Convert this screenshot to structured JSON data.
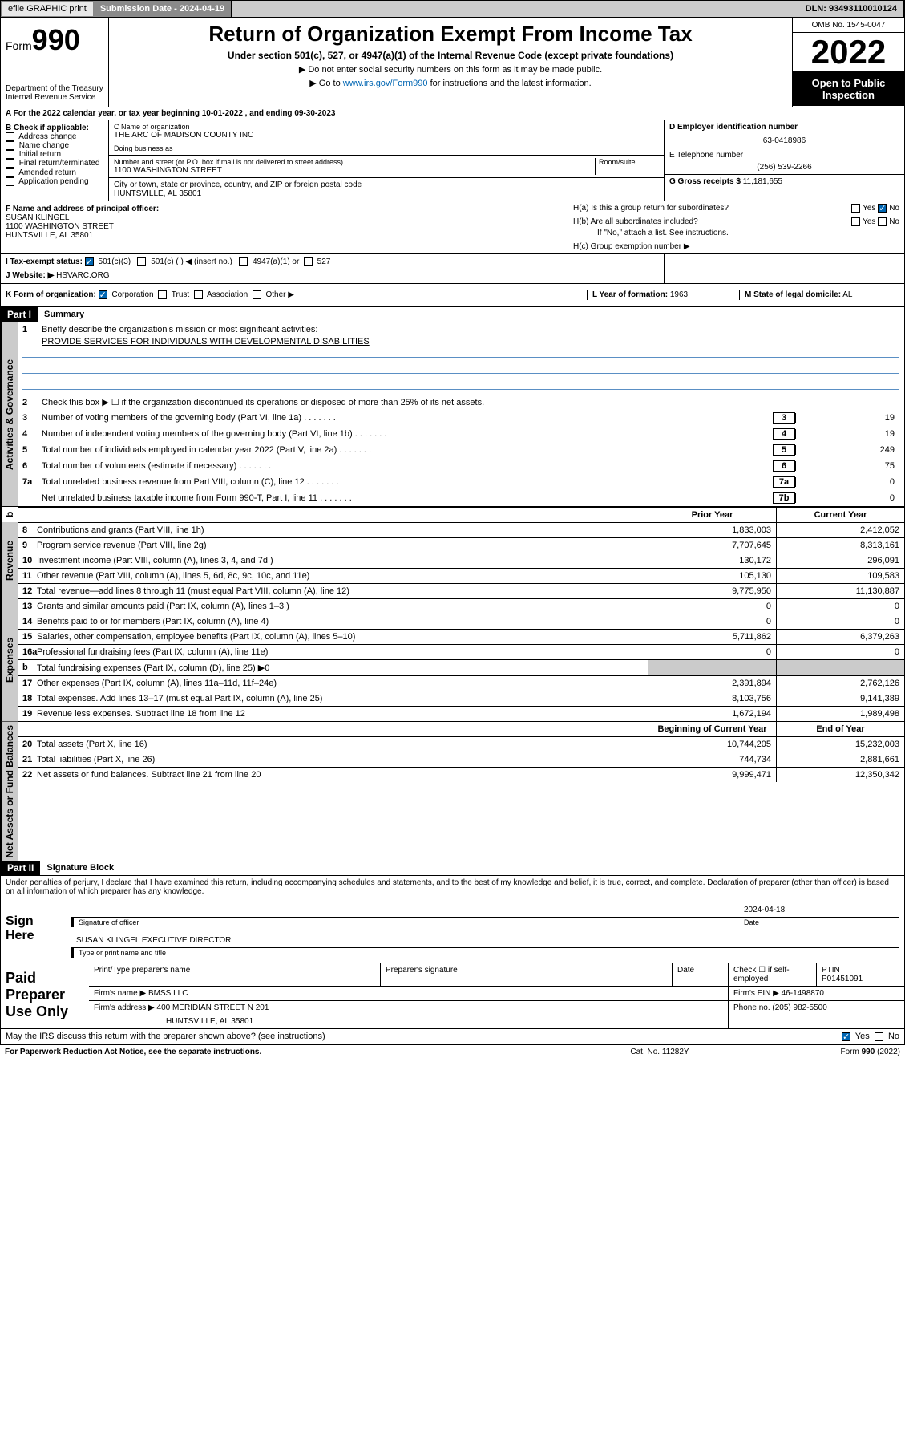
{
  "top": {
    "efile": "efile GRAPHIC print",
    "submission": "Submission Date - 2024-04-19",
    "dln": "DLN: 93493110010124"
  },
  "header": {
    "form": "Form",
    "formnum": "990",
    "dept": "Department of the Treasury",
    "irs": "Internal Revenue Service",
    "title": "Return of Organization Exempt From Income Tax",
    "sub1": "Under section 501(c), 527, or 4947(a)(1) of the Internal Revenue Code (except private foundations)",
    "sub2": "▶ Do not enter social security numbers on this form as it may be made public.",
    "sub3_pre": "▶ Go to ",
    "sub3_link": "www.irs.gov/Form990",
    "sub3_post": " for instructions and the latest information.",
    "omb": "OMB No. 1545-0047",
    "year": "2022",
    "otpi": "Open to Public Inspection"
  },
  "a": {
    "text": "A For the 2022 calendar year, or tax year beginning 10-01-2022    , and ending 09-30-2023"
  },
  "b": {
    "title": "B Check if applicable:",
    "items": [
      "Address change",
      "Name change",
      "Initial return",
      "Final return/terminated",
      "Amended return",
      "Application pending"
    ]
  },
  "c": {
    "lbl": "C Name of organization",
    "name": "THE ARC OF MADISON COUNTY INC",
    "dba": "Doing business as",
    "street_lbl": "Number and street (or P.O. box if mail is not delivered to street address)",
    "street": "1100 WASHINGTON STREET",
    "room": "Room/suite",
    "city_lbl": "City or town, state or province, country, and ZIP or foreign postal code",
    "city": "HUNTSVILLE, AL  35801"
  },
  "d": {
    "lbl": "D Employer identification number",
    "val": "63-0418986"
  },
  "e": {
    "lbl": "E Telephone number",
    "val": "(256) 539-2266"
  },
  "g": {
    "lbl": "G Gross receipts $",
    "val": "11,181,655"
  },
  "f": {
    "lbl": "F  Name and address of principal officer:",
    "name": "SUSAN KLINGEL",
    "street": "1100 WASHINGTON STREET",
    "city": "HUNTSVILLE, AL  35801"
  },
  "h": {
    "a": "H(a)  Is this a group return for subordinates?",
    "b": "H(b)  Are all subordinates included?",
    "note": "If \"No,\" attach a list. See instructions.",
    "c": "H(c)  Group exemption number ▶"
  },
  "i": {
    "lbl": "I    Tax-exempt status:",
    "opts": [
      "501(c)(3)",
      "501(c) (  ) ◀ (insert no.)",
      "4947(a)(1) or",
      "527"
    ]
  },
  "j": {
    "lbl": "J    Website: ▶",
    "val": "HSVARC.ORG"
  },
  "k": {
    "lbl": "K Form of organization:",
    "opts": [
      "Corporation",
      "Trust",
      "Association",
      "Other ▶"
    ]
  },
  "l": {
    "lbl": "L Year of formation:",
    "val": "1963"
  },
  "m": {
    "lbl": "M State of legal domicile:",
    "val": "AL"
  },
  "part1": {
    "hdr": "Part I",
    "title": "Summary"
  },
  "p1": {
    "l1": "Briefly describe the organization's mission or most significant activities:",
    "mission": "PROVIDE SERVICES FOR INDIVIDUALS WITH DEVELOPMENTAL DISABILITIES",
    "l2": "Check this box ▶ ☐  if the organization discontinued its operations or disposed of more than 25% of its net assets.",
    "rows": [
      {
        "n": "3",
        "t": "Number of voting members of the governing body (Part VI, line 1a)",
        "b": "3",
        "v": "19"
      },
      {
        "n": "4",
        "t": "Number of independent voting members of the governing body (Part VI, line 1b)",
        "b": "4",
        "v": "19"
      },
      {
        "n": "5",
        "t": "Total number of individuals employed in calendar year 2022 (Part V, line 2a)",
        "b": "5",
        "v": "249"
      },
      {
        "n": "6",
        "t": "Total number of volunteers (estimate if necessary)",
        "b": "6",
        "v": "75"
      },
      {
        "n": "7a",
        "t": "Total unrelated business revenue from Part VIII, column (C), line 12",
        "b": "7a",
        "v": "0"
      },
      {
        "n": "",
        "t": "Net unrelated business taxable income from Form 990-T, Part I, line 11",
        "b": "7b",
        "v": "0"
      }
    ]
  },
  "cols": {
    "prior": "Prior Year",
    "current": "Current Year",
    "begin": "Beginning of Current Year",
    "end": "End of Year"
  },
  "rev": [
    {
      "n": "8",
      "t": "Contributions and grants (Part VIII, line 1h)",
      "p": "1,833,003",
      "c": "2,412,052"
    },
    {
      "n": "9",
      "t": "Program service revenue (Part VIII, line 2g)",
      "p": "7,707,645",
      "c": "8,313,161"
    },
    {
      "n": "10",
      "t": "Investment income (Part VIII, column (A), lines 3, 4, and 7d )",
      "p": "130,172",
      "c": "296,091"
    },
    {
      "n": "11",
      "t": "Other revenue (Part VIII, column (A), lines 5, 6d, 8c, 9c, 10c, and 11e)",
      "p": "105,130",
      "c": "109,583"
    },
    {
      "n": "12",
      "t": "Total revenue—add lines 8 through 11 (must equal Part VIII, column (A), line 12)",
      "p": "9,775,950",
      "c": "11,130,887"
    }
  ],
  "exp": [
    {
      "n": "13",
      "t": "Grants and similar amounts paid (Part IX, column (A), lines 1–3 )",
      "p": "0",
      "c": "0"
    },
    {
      "n": "14",
      "t": "Benefits paid to or for members (Part IX, column (A), line 4)",
      "p": "0",
      "c": "0"
    },
    {
      "n": "15",
      "t": "Salaries, other compensation, employee benefits (Part IX, column (A), lines 5–10)",
      "p": "5,711,862",
      "c": "6,379,263"
    },
    {
      "n": "16a",
      "t": "Professional fundraising fees (Part IX, column (A), line 11e)",
      "p": "0",
      "c": "0"
    },
    {
      "n": "b",
      "t": "Total fundraising expenses (Part IX, column (D), line 25) ▶0",
      "p": "",
      "c": "",
      "grey": true
    },
    {
      "n": "17",
      "t": "Other expenses (Part IX, column (A), lines 11a–11d, 11f–24e)",
      "p": "2,391,894",
      "c": "2,762,126"
    },
    {
      "n": "18",
      "t": "Total expenses. Add lines 13–17 (must equal Part IX, column (A), line 25)",
      "p": "8,103,756",
      "c": "9,141,389"
    },
    {
      "n": "19",
      "t": "Revenue less expenses. Subtract line 18 from line 12",
      "p": "1,672,194",
      "c": "1,989,498"
    }
  ],
  "na": [
    {
      "n": "20",
      "t": "Total assets (Part X, line 16)",
      "p": "10,744,205",
      "c": "15,232,003"
    },
    {
      "n": "21",
      "t": "Total liabilities (Part X, line 26)",
      "p": "744,734",
      "c": "2,881,661"
    },
    {
      "n": "22",
      "t": "Net assets or fund balances. Subtract line 21 from line 20",
      "p": "9,999,471",
      "c": "12,350,342"
    }
  ],
  "part2": {
    "hdr": "Part II",
    "title": "Signature Block"
  },
  "decl": "Under penalties of perjury, I declare that I have examined this return, including accompanying schedules and statements, and to the best of my knowledge and belief, it is true, correct, and complete. Declaration of preparer (other than officer) is based on all information of which preparer has any knowledge.",
  "sign": {
    "here": "Sign Here",
    "sig": "Signature of officer",
    "date": "Date",
    "dateval": "2024-04-18",
    "name": "SUSAN KLINGEL  EXECUTIVE DIRECTOR",
    "namelbl": "Type or print name and title"
  },
  "prep": {
    "title": "Paid Preparer Use Only",
    "h1": "Print/Type preparer's name",
    "h2": "Preparer's signature",
    "h3": "Date",
    "h4": "Check ☐ if self-employed",
    "h5": "PTIN",
    "ptin": "P01451091",
    "firm": "Firm's name    ▶",
    "firmval": "BMSS LLC",
    "ein": "Firm's EIN ▶",
    "einval": "46-1498870",
    "addr": "Firm's address ▶",
    "addrval": "400 MERIDIAN STREET N 201",
    "addrval2": "HUNTSVILLE, AL  35801",
    "phone": "Phone no.",
    "phoneval": "(205) 982-5500"
  },
  "may": "May the IRS discuss this return with the preparer shown above? (see instructions)",
  "footer": {
    "l": "For Paperwork Reduction Act Notice, see the separate instructions.",
    "m": "Cat. No. 11282Y",
    "r": "Form 990 (2022)"
  },
  "yn": {
    "yes": "Yes",
    "no": "No"
  },
  "tabs": {
    "ag": "Activities & Governance",
    "rev": "Revenue",
    "exp": "Expenses",
    "na": "Net Assets or Fund Balances"
  }
}
